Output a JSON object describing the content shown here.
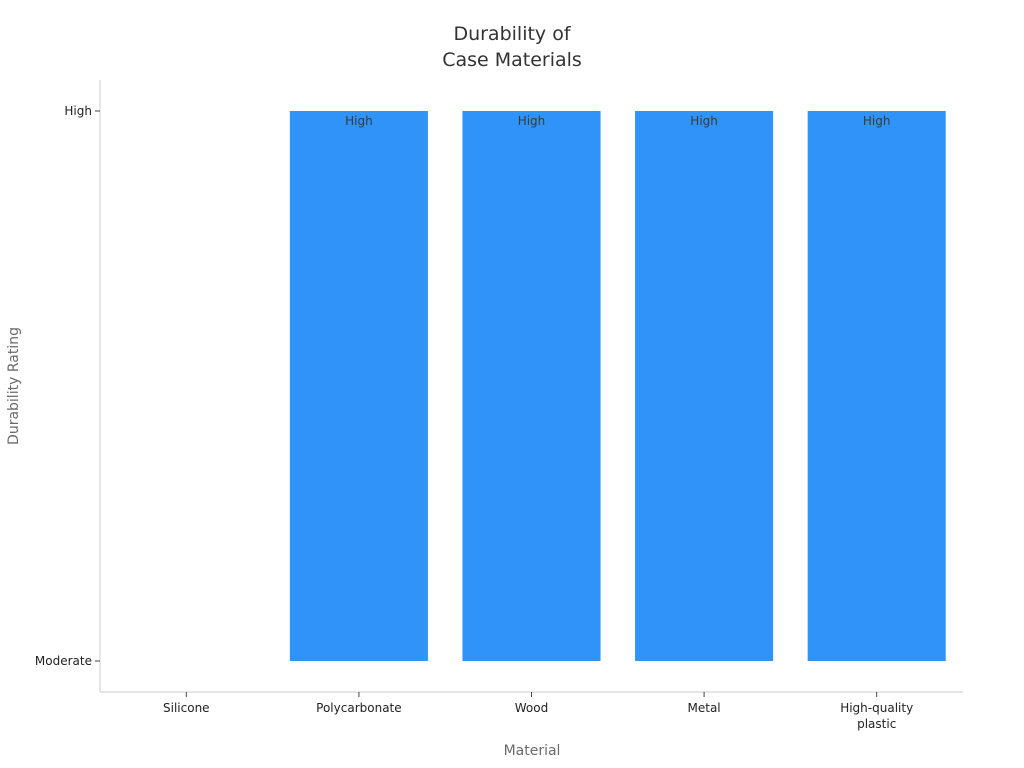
{
  "chart_data": {
    "type": "bar",
    "title_lines": [
      "Durability of",
      "Case Materials"
    ],
    "xlabel": "Material",
    "ylabel": "Durability Rating",
    "categories": [
      [
        "Silicone"
      ],
      [
        "Polycarbonate"
      ],
      [
        "Wood"
      ],
      [
        "Metal"
      ],
      [
        "High-quality",
        "plastic"
      ]
    ],
    "y_scale": "ordinal",
    "y_levels": [
      "Moderate",
      "High"
    ],
    "values": [
      "Moderate",
      "High",
      "High",
      "High",
      "High"
    ],
    "data_labels": [
      "",
      "High",
      "High",
      "High",
      "High"
    ],
    "bar_color": "#2f93f7",
    "grid": false,
    "legend": "none"
  }
}
